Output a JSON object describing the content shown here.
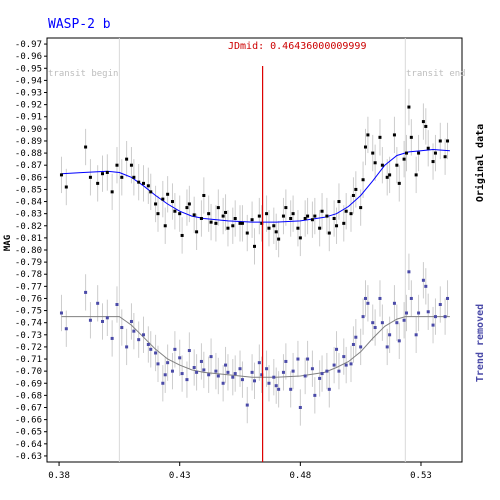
{
  "chart_data": {
    "type": "scatter",
    "title": "WASP-2 b",
    "ylabel": "MAG",
    "xlim": [
      0.375,
      0.547
    ],
    "ylim": [
      -0.625,
      -0.975
    ],
    "x_ticks": [
      0.38,
      0.43,
      0.48,
      0.53
    ],
    "x_tick_labels": [
      "0.38",
      "0.43",
      "0.48",
      "0.53"
    ],
    "y_ticks": [
      -0.63,
      -0.64,
      -0.65,
      -0.66,
      -0.67,
      -0.68,
      -0.69,
      -0.7,
      -0.71,
      -0.72,
      -0.73,
      -0.74,
      -0.75,
      -0.76,
      -0.77,
      -0.78,
      -0.79,
      -0.8,
      -0.81,
      -0.82,
      -0.83,
      -0.84,
      -0.85,
      -0.86,
      -0.87,
      -0.88,
      -0.89,
      -0.9,
      -0.91,
      -0.92,
      -0.93,
      -0.94,
      -0.95,
      -0.96,
      -0.97
    ],
    "y_tick_labels": [
      "-0.63",
      "-0.64",
      "-0.65",
      "-0.66",
      "-0.67",
      "-0.68",
      "-0.69",
      "-0.70",
      "-0.71",
      "-0.72",
      "-0.73",
      "-0.74",
      "-0.75",
      "-0.76",
      "-0.77",
      "-0.78",
      "-0.79",
      "-0.80",
      "-0.81",
      "-0.82",
      "-0.83",
      "-0.84",
      "-0.85",
      "-0.86",
      "-0.87",
      "-0.88",
      "-0.89",
      "-0.90",
      "-0.91",
      "-0.92",
      "-0.93",
      "-0.94",
      "-0.95",
      "-0.96",
      "-0.97"
    ],
    "mid_label": "JDmid: 0.46436000009999",
    "mid_x": 0.46436,
    "transit_begin_label": "transit begin",
    "transit_begin_x": 0.405,
    "transit_end_label": "transit end",
    "transit_end_x": 0.5235,
    "series": [
      {
        "name": "Original data",
        "color": "#000000",
        "fit_color": "#0000ff",
        "fit": [
          [
            0.381,
            -0.863
          ],
          [
            0.39,
            -0.864
          ],
          [
            0.4,
            -0.865
          ],
          [
            0.405,
            -0.864
          ],
          [
            0.41,
            -0.86
          ],
          [
            0.415,
            -0.853
          ],
          [
            0.42,
            -0.845
          ],
          [
            0.425,
            -0.838
          ],
          [
            0.43,
            -0.832
          ],
          [
            0.435,
            -0.828
          ],
          [
            0.44,
            -0.826
          ],
          [
            0.45,
            -0.824
          ],
          [
            0.46,
            -0.823
          ],
          [
            0.465,
            -0.823
          ],
          [
            0.47,
            -0.823
          ],
          [
            0.48,
            -0.824
          ],
          [
            0.49,
            -0.827
          ],
          [
            0.495,
            -0.83
          ],
          [
            0.5,
            -0.836
          ],
          [
            0.505,
            -0.845
          ],
          [
            0.51,
            -0.857
          ],
          [
            0.515,
            -0.87
          ],
          [
            0.52,
            -0.878
          ],
          [
            0.525,
            -0.881
          ],
          [
            0.53,
            -0.882
          ],
          [
            0.535,
            -0.883
          ],
          [
            0.542,
            -0.882
          ]
        ],
        "points": [
          [
            0.381,
            -0.862
          ],
          [
            0.383,
            -0.852
          ],
          [
            0.391,
            -0.885
          ],
          [
            0.393,
            -0.86
          ],
          [
            0.396,
            -0.855
          ],
          [
            0.398,
            -0.863
          ],
          [
            0.4,
            -0.864
          ],
          [
            0.402,
            -0.848
          ],
          [
            0.404,
            -0.87
          ],
          [
            0.406,
            -0.86
          ],
          [
            0.408,
            -0.875
          ],
          [
            0.41,
            -0.87
          ],
          [
            0.411,
            -0.86
          ],
          [
            0.413,
            -0.856
          ],
          [
            0.415,
            -0.855
          ],
          [
            0.417,
            -0.853
          ],
          [
            0.418,
            -0.848
          ],
          [
            0.42,
            -0.838
          ],
          [
            0.421,
            -0.83
          ],
          [
            0.423,
            -0.842
          ],
          [
            0.424,
            -0.82
          ],
          [
            0.425,
            -0.846
          ],
          [
            0.427,
            -0.84
          ],
          [
            0.428,
            -0.832
          ],
          [
            0.43,
            -0.83
          ],
          [
            0.431,
            -0.812
          ],
          [
            0.433,
            -0.835
          ],
          [
            0.434,
            -0.838
          ],
          [
            0.436,
            -0.829
          ],
          [
            0.437,
            -0.815
          ],
          [
            0.439,
            -0.826
          ],
          [
            0.44,
            -0.845
          ],
          [
            0.442,
            -0.83
          ],
          [
            0.443,
            -0.823
          ],
          [
            0.445,
            -0.822
          ],
          [
            0.446,
            -0.835
          ],
          [
            0.448,
            -0.828
          ],
          [
            0.449,
            -0.831
          ],
          [
            0.45,
            -0.818
          ],
          [
            0.452,
            -0.82
          ],
          [
            0.453,
            -0.826
          ],
          [
            0.455,
            -0.822
          ],
          [
            0.456,
            -0.822
          ],
          [
            0.458,
            -0.814
          ],
          [
            0.46,
            -0.825
          ],
          [
            0.461,
            -0.803
          ],
          [
            0.463,
            -0.828
          ],
          [
            0.464,
            -0.822
          ],
          [
            0.466,
            -0.83
          ],
          [
            0.467,
            -0.818
          ],
          [
            0.469,
            -0.82
          ],
          [
            0.47,
            -0.815
          ],
          [
            0.471,
            -0.809
          ],
          [
            0.473,
            -0.828
          ],
          [
            0.474,
            -0.835
          ],
          [
            0.476,
            -0.826
          ],
          [
            0.477,
            -0.83
          ],
          [
            0.479,
            -0.818
          ],
          [
            0.48,
            -0.81
          ],
          [
            0.482,
            -0.826
          ],
          [
            0.483,
            -0.828
          ],
          [
            0.485,
            -0.825
          ],
          [
            0.486,
            -0.828
          ],
          [
            0.488,
            -0.818
          ],
          [
            0.489,
            -0.832
          ],
          [
            0.491,
            -0.828
          ],
          [
            0.492,
            -0.814
          ],
          [
            0.494,
            -0.826
          ],
          [
            0.495,
            -0.82
          ],
          [
            0.496,
            -0.84
          ],
          [
            0.498,
            -0.822
          ],
          [
            0.499,
            -0.832
          ],
          [
            0.501,
            -0.83
          ],
          [
            0.502,
            -0.845
          ],
          [
            0.503,
            -0.85
          ],
          [
            0.505,
            -0.835
          ],
          [
            0.506,
            -0.858
          ],
          [
            0.507,
            -0.885
          ],
          [
            0.508,
            -0.895
          ],
          [
            0.51,
            -0.88
          ],
          [
            0.511,
            -0.872
          ],
          [
            0.513,
            -0.893
          ],
          [
            0.514,
            -0.87
          ],
          [
            0.516,
            -0.86
          ],
          [
            0.517,
            -0.862
          ],
          [
            0.519,
            -0.895
          ],
          [
            0.52,
            -0.87
          ],
          [
            0.521,
            -0.855
          ],
          [
            0.523,
            -0.875
          ],
          [
            0.524,
            -0.88
          ],
          [
            0.525,
            -0.918
          ],
          [
            0.526,
            -0.893
          ],
          [
            0.528,
            -0.862
          ],
          [
            0.529,
            -0.88
          ],
          [
            0.531,
            -0.906
          ],
          [
            0.532,
            -0.902
          ],
          [
            0.533,
            -0.884
          ],
          [
            0.535,
            -0.873
          ],
          [
            0.536,
            -0.88
          ],
          [
            0.538,
            -0.89
          ],
          [
            0.54,
            -0.877
          ],
          [
            0.541,
            -0.89
          ]
        ]
      },
      {
        "name": "Trend removed",
        "color": "#4a4aa8",
        "fit_color": "#808080",
        "fit": [
          [
            0.381,
            -0.745
          ],
          [
            0.39,
            -0.745
          ],
          [
            0.405,
            -0.745
          ],
          [
            0.41,
            -0.738
          ],
          [
            0.415,
            -0.728
          ],
          [
            0.42,
            -0.718
          ],
          [
            0.425,
            -0.71
          ],
          [
            0.43,
            -0.705
          ],
          [
            0.435,
            -0.701
          ],
          [
            0.44,
            -0.699
          ],
          [
            0.45,
            -0.697
          ],
          [
            0.46,
            -0.695
          ],
          [
            0.465,
            -0.695
          ],
          [
            0.47,
            -0.695
          ],
          [
            0.48,
            -0.696
          ],
          [
            0.49,
            -0.699
          ],
          [
            0.495,
            -0.703
          ],
          [
            0.5,
            -0.708
          ],
          [
            0.505,
            -0.716
          ],
          [
            0.51,
            -0.727
          ],
          [
            0.515,
            -0.737
          ],
          [
            0.52,
            -0.743
          ],
          [
            0.5235,
            -0.745
          ],
          [
            0.53,
            -0.745
          ],
          [
            0.542,
            -0.745
          ]
        ],
        "points": [
          [
            0.381,
            -0.748
          ],
          [
            0.383,
            -0.735
          ],
          [
            0.391,
            -0.765
          ],
          [
            0.393,
            -0.742
          ],
          [
            0.396,
            -0.756
          ],
          [
            0.398,
            -0.741
          ],
          [
            0.4,
            -0.744
          ],
          [
            0.402,
            -0.727
          ],
          [
            0.404,
            -0.755
          ],
          [
            0.406,
            -0.736
          ],
          [
            0.408,
            -0.72
          ],
          [
            0.41,
            -0.741
          ],
          [
            0.411,
            -0.733
          ],
          [
            0.413,
            -0.726
          ],
          [
            0.415,
            -0.73
          ],
          [
            0.417,
            -0.722
          ],
          [
            0.418,
            -0.718
          ],
          [
            0.42,
            -0.715
          ],
          [
            0.421,
            -0.706
          ],
          [
            0.423,
            -0.69
          ],
          [
            0.424,
            -0.697
          ],
          [
            0.425,
            -0.707
          ],
          [
            0.427,
            -0.7
          ],
          [
            0.428,
            -0.718
          ],
          [
            0.43,
            -0.711
          ],
          [
            0.431,
            -0.698
          ],
          [
            0.433,
            -0.693
          ],
          [
            0.434,
            -0.717
          ],
          [
            0.436,
            -0.703
          ],
          [
            0.437,
            -0.699
          ],
          [
            0.439,
            -0.708
          ],
          [
            0.44,
            -0.701
          ],
          [
            0.442,
            -0.697
          ],
          [
            0.443,
            -0.712
          ],
          [
            0.445,
            -0.7
          ],
          [
            0.446,
            -0.696
          ],
          [
            0.448,
            -0.69
          ],
          [
            0.449,
            -0.705
          ],
          [
            0.45,
            -0.699
          ],
          [
            0.452,
            -0.695
          ],
          [
            0.453,
            -0.698
          ],
          [
            0.455,
            -0.702
          ],
          [
            0.456,
            -0.693
          ],
          [
            0.458,
            -0.672
          ],
          [
            0.46,
            -0.699
          ],
          [
            0.461,
            -0.692
          ],
          [
            0.463,
            -0.707
          ],
          [
            0.464,
            -0.697
          ],
          [
            0.466,
            -0.702
          ],
          [
            0.467,
            -0.69
          ],
          [
            0.469,
            -0.695
          ],
          [
            0.47,
            -0.688
          ],
          [
            0.471,
            -0.685
          ],
          [
            0.473,
            -0.699
          ],
          [
            0.474,
            -0.708
          ],
          [
            0.476,
            -0.685
          ],
          [
            0.477,
            -0.7
          ],
          [
            0.479,
            -0.71
          ],
          [
            0.48,
            -0.67
          ],
          [
            0.482,
            -0.696
          ],
          [
            0.483,
            -0.71
          ],
          [
            0.485,
            -0.702
          ],
          [
            0.486,
            -0.68
          ],
          [
            0.488,
            -0.694
          ],
          [
            0.489,
            -0.698
          ],
          [
            0.491,
            -0.7
          ],
          [
            0.492,
            -0.685
          ],
          [
            0.494,
            -0.705
          ],
          [
            0.495,
            -0.718
          ],
          [
            0.496,
            -0.7
          ],
          [
            0.498,
            -0.712
          ],
          [
            0.499,
            -0.705
          ],
          [
            0.501,
            -0.706
          ],
          [
            0.502,
            -0.722
          ],
          [
            0.503,
            -0.728
          ],
          [
            0.505,
            -0.72
          ],
          [
            0.506,
            -0.745
          ],
          [
            0.507,
            -0.76
          ],
          [
            0.508,
            -0.756
          ],
          [
            0.51,
            -0.74
          ],
          [
            0.511,
            -0.736
          ],
          [
            0.513,
            -0.76
          ],
          [
            0.514,
            -0.74
          ],
          [
            0.516,
            -0.72
          ],
          [
            0.517,
            -0.73
          ],
          [
            0.519,
            -0.756
          ],
          [
            0.52,
            -0.74
          ],
          [
            0.521,
            -0.725
          ],
          [
            0.523,
            -0.742
          ],
          [
            0.524,
            -0.748
          ],
          [
            0.525,
            -0.782
          ],
          [
            0.526,
            -0.76
          ],
          [
            0.528,
            -0.73
          ],
          [
            0.529,
            -0.748
          ],
          [
            0.531,
            -0.775
          ],
          [
            0.532,
            -0.77
          ],
          [
            0.533,
            -0.749
          ],
          [
            0.535,
            -0.738
          ],
          [
            0.536,
            -0.745
          ],
          [
            0.538,
            -0.755
          ],
          [
            0.54,
            -0.745
          ],
          [
            0.541,
            -0.76
          ]
        ]
      }
    ]
  }
}
